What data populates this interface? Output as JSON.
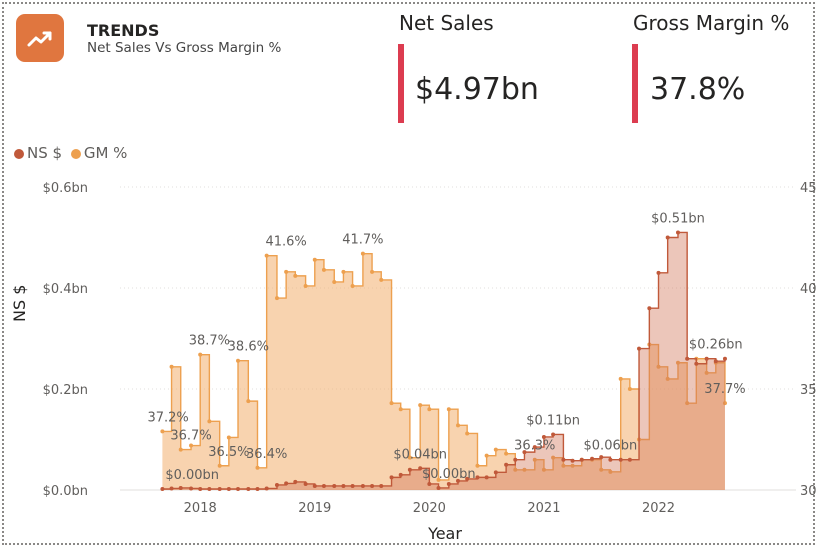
{
  "header": {
    "title": "TRENDS",
    "subtitle": "Net Sales Vs Gross Margin %",
    "icon": "trend-up-icon",
    "icon_color": "#e0763f"
  },
  "kpis": [
    {
      "label": "Net Sales",
      "value": "$4.97bn",
      "accent": "#dc3c50"
    },
    {
      "label": "Gross Margin %",
      "value": "37.8%",
      "accent": "#dc3c50"
    }
  ],
  "legend": [
    {
      "label": "NS $",
      "color": "#c0593a"
    },
    {
      "label": "GM %",
      "color": "#eda04f"
    }
  ],
  "chart_data": {
    "type": "area",
    "step": true,
    "xlabel": "Year",
    "ylabel": "NS $",
    "x_ticks": [
      "2018",
      "2019",
      "2020",
      "2021",
      "2022"
    ],
    "x_tick_pos": [
      2018,
      2019,
      2020,
      2021,
      2022
    ],
    "xlim": [
      2017.3,
      2023.2
    ],
    "y_ticks": [
      "$0.0bn",
      "$0.2bn",
      "$0.4bn",
      "$0.6bn"
    ],
    "y_tick_values": [
      0,
      0.2,
      0.4,
      0.6
    ],
    "ylim": [
      0,
      0.6
    ],
    "y2_ticks": [
      "30",
      "35",
      "40",
      "45"
    ],
    "y2_tick_values": [
      30,
      35,
      40,
      45
    ],
    "y2lim": [
      30,
      45
    ],
    "series": [
      {
        "name": "NS $",
        "axis": "left",
        "color": "#c0593a",
        "x": [
          2017.67,
          2017.75,
          2017.83,
          2017.92,
          2018.0,
          2018.08,
          2018.17,
          2018.25,
          2018.33,
          2018.42,
          2018.5,
          2018.58,
          2018.67,
          2018.75,
          2018.83,
          2018.92,
          2019.0,
          2019.08,
          2019.17,
          2019.25,
          2019.33,
          2019.42,
          2019.5,
          2019.58,
          2019.67,
          2019.75,
          2019.83,
          2019.92,
          2020.0,
          2020.08,
          2020.17,
          2020.25,
          2020.33,
          2020.42,
          2020.5,
          2020.58,
          2020.67,
          2020.75,
          2020.83,
          2020.92,
          2021.0,
          2021.08,
          2021.17,
          2021.25,
          2021.33,
          2021.42,
          2021.5,
          2021.58,
          2021.67,
          2021.75,
          2021.83,
          2021.92,
          2022.0,
          2022.08,
          2022.17,
          2022.25,
          2022.33,
          2022.42,
          2022.5,
          2022.58
        ],
        "values": [
          0.002,
          0.003,
          0.004,
          0.003,
          0.002,
          0.002,
          0.002,
          0.002,
          0.002,
          0.002,
          0.002,
          0.003,
          0.01,
          0.013,
          0.016,
          0.012,
          0.008,
          0.008,
          0.008,
          0.008,
          0.008,
          0.008,
          0.008,
          0.008,
          0.025,
          0.03,
          0.04,
          0.043,
          0.012,
          0.004,
          0.012,
          0.018,
          0.022,
          0.025,
          0.025,
          0.035,
          0.05,
          0.06,
          0.075,
          0.085,
          0.105,
          0.11,
          0.06,
          0.058,
          0.06,
          0.062,
          0.065,
          0.06,
          0.06,
          0.06,
          0.28,
          0.36,
          0.43,
          0.5,
          0.51,
          0.26,
          0.25,
          0.26,
          0.255,
          0.26
        ]
      },
      {
        "name": "GM %",
        "axis": "right",
        "color": "#eda04f",
        "x": [
          2017.67,
          2017.75,
          2017.83,
          2017.92,
          2018.0,
          2018.08,
          2018.17,
          2018.25,
          2018.33,
          2018.42,
          2018.5,
          2018.58,
          2018.67,
          2018.75,
          2018.83,
          2018.92,
          2019.0,
          2019.08,
          2019.17,
          2019.25,
          2019.33,
          2019.42,
          2019.5,
          2019.58,
          2019.67,
          2019.75,
          2019.83,
          2019.92,
          2020.0,
          2020.08,
          2020.17,
          2020.25,
          2020.33,
          2020.42,
          2020.5,
          2020.58,
          2020.67,
          2020.75,
          2020.83,
          2020.92,
          2021.0,
          2021.08,
          2021.17,
          2021.25,
          2021.33,
          2021.42,
          2021.5,
          2021.58,
          2021.67,
          2021.75,
          2021.83,
          2021.92,
          2022.0,
          2022.08,
          2022.17,
          2022.25,
          2022.33,
          2022.42,
          2022.5,
          2022.58
        ],
        "values": [
          32.9,
          36.1,
          32.0,
          32.2,
          36.7,
          33.4,
          31.2,
          32.6,
          36.4,
          34.4,
          31.1,
          41.6,
          39.5,
          40.8,
          40.6,
          40.1,
          41.4,
          40.9,
          40.3,
          40.8,
          40.1,
          41.7,
          40.8,
          40.4,
          34.3,
          34.0,
          31.6,
          34.2,
          34.0,
          30.5,
          34.0,
          33.2,
          32.8,
          31.2,
          31.7,
          32.0,
          31.8,
          31.0,
          31.0,
          31.5,
          31.0,
          31.6,
          31.2,
          31.2,
          31.5,
          31.5,
          31.0,
          30.9,
          35.5,
          35.0,
          32.5,
          37.2,
          36.1,
          35.5,
          36.3,
          34.3,
          36.5,
          35.8,
          36.3,
          34.3
        ]
      }
    ],
    "data_labels": [
      {
        "text": "$0.00bn",
        "x": 2017.93,
        "y": 0.002,
        "axis": "left"
      },
      {
        "text": "$0.04bn",
        "x": 2019.92,
        "y": 0.043,
        "axis": "left"
      },
      {
        "text": "$0.00bn",
        "x": 2020.17,
        "y": 0.004,
        "axis": "left"
      },
      {
        "text": "$0.11bn",
        "x": 2021.08,
        "y": 0.11,
        "axis": "left"
      },
      {
        "text": "$0.06bn",
        "x": 2021.58,
        "y": 0.06,
        "axis": "left"
      },
      {
        "text": "$0.51bn",
        "x": 2022.17,
        "y": 0.51,
        "axis": "left"
      },
      {
        "text": "$0.26bn",
        "x": 2022.5,
        "y": 0.26,
        "axis": "left"
      },
      {
        "text": "37.2%",
        "x": 2017.72,
        "y": 32.9,
        "axis": "right"
      },
      {
        "text": "36.7%",
        "x": 2017.92,
        "y": 32.0,
        "axis": "right"
      },
      {
        "text": "38.7%",
        "x": 2018.08,
        "y": 36.7,
        "axis": "right"
      },
      {
        "text": "36.5%",
        "x": 2018.25,
        "y": 31.2,
        "axis": "right"
      },
      {
        "text": "38.6%",
        "x": 2018.42,
        "y": 36.4,
        "axis": "right"
      },
      {
        "text": "36.4%",
        "x": 2018.58,
        "y": 31.1,
        "axis": "right"
      },
      {
        "text": "41.6%",
        "x": 2018.75,
        "y": 41.6,
        "axis": "right"
      },
      {
        "text": "41.7%",
        "x": 2019.42,
        "y": 41.7,
        "axis": "right"
      },
      {
        "text": "36.3%",
        "x": 2020.92,
        "y": 31.5,
        "axis": "right"
      },
      {
        "text": "37.7%",
        "x": 2022.58,
        "y": 34.3,
        "axis": "right"
      }
    ]
  }
}
